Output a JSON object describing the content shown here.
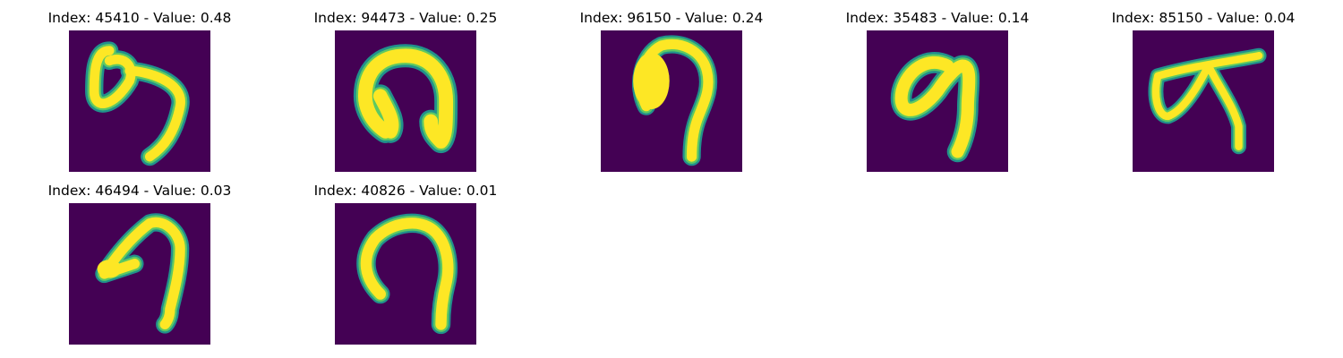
{
  "colors": {
    "background": "#440154",
    "stroke_edge": "#21918c",
    "stroke_mid": "#5ec962",
    "stroke_core": "#fde725"
  },
  "panels": [
    {
      "title": "Index: 45410 - Value: 0.48",
      "index": 45410,
      "value": 0.48
    },
    {
      "title": "Index: 94473 - Value: 0.25",
      "index": 94473,
      "value": 0.25
    },
    {
      "title": "Index: 96150 - Value: 0.24",
      "index": 96150,
      "value": 0.24
    },
    {
      "title": "Index: 35483 - Value: 0.14",
      "index": 35483,
      "value": 0.14
    },
    {
      "title": "Index: 85150 - Value: 0.04",
      "index": 85150,
      "value": 0.04
    },
    {
      "title": "Index: 46494 - Value: 0.03",
      "index": 46494,
      "value": 0.03
    },
    {
      "title": "Index: 40826 - Value: 0.01",
      "index": 40826,
      "value": 0.01
    }
  ]
}
